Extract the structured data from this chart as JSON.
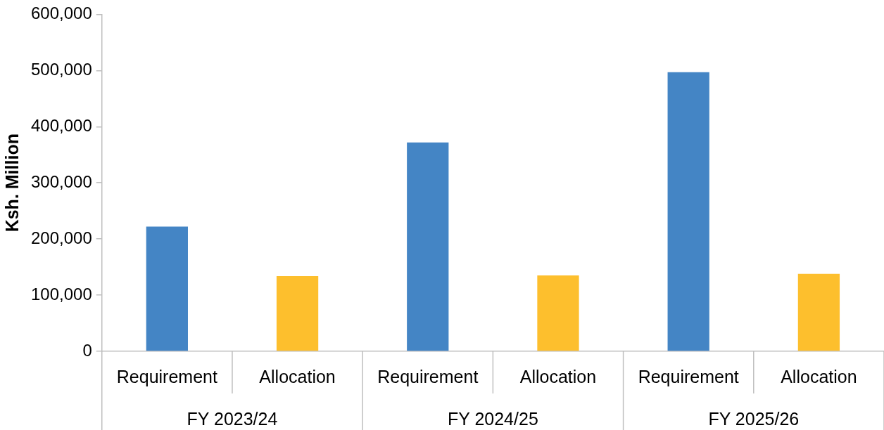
{
  "chart_data": {
    "type": "bar",
    "ylabel": "Ksh. Million",
    "categories": [
      "FY 2023/24",
      "FY 2024/25",
      "FY 2025/26"
    ],
    "series": [
      {
        "name": "Requirement",
        "color": "#4485c5",
        "values": [
          222000,
          372000,
          497000
        ]
      },
      {
        "name": "Allocation",
        "color": "#fdbf2d",
        "values": [
          134000,
          135000,
          138000
        ]
      }
    ],
    "ylim": [
      0,
      600000
    ],
    "yticks": [
      0,
      {
        "value": 100000,
        "label": "100,000"
      },
      {
        "value": 200000,
        "label": "200,000"
      },
      {
        "value": 300000,
        "label": "300,000"
      },
      {
        "value": 400000,
        "label": "400,000"
      },
      {
        "value": 500000,
        "label": "500,000"
      },
      {
        "value": 600000,
        "label": "600,000"
      }
    ]
  }
}
